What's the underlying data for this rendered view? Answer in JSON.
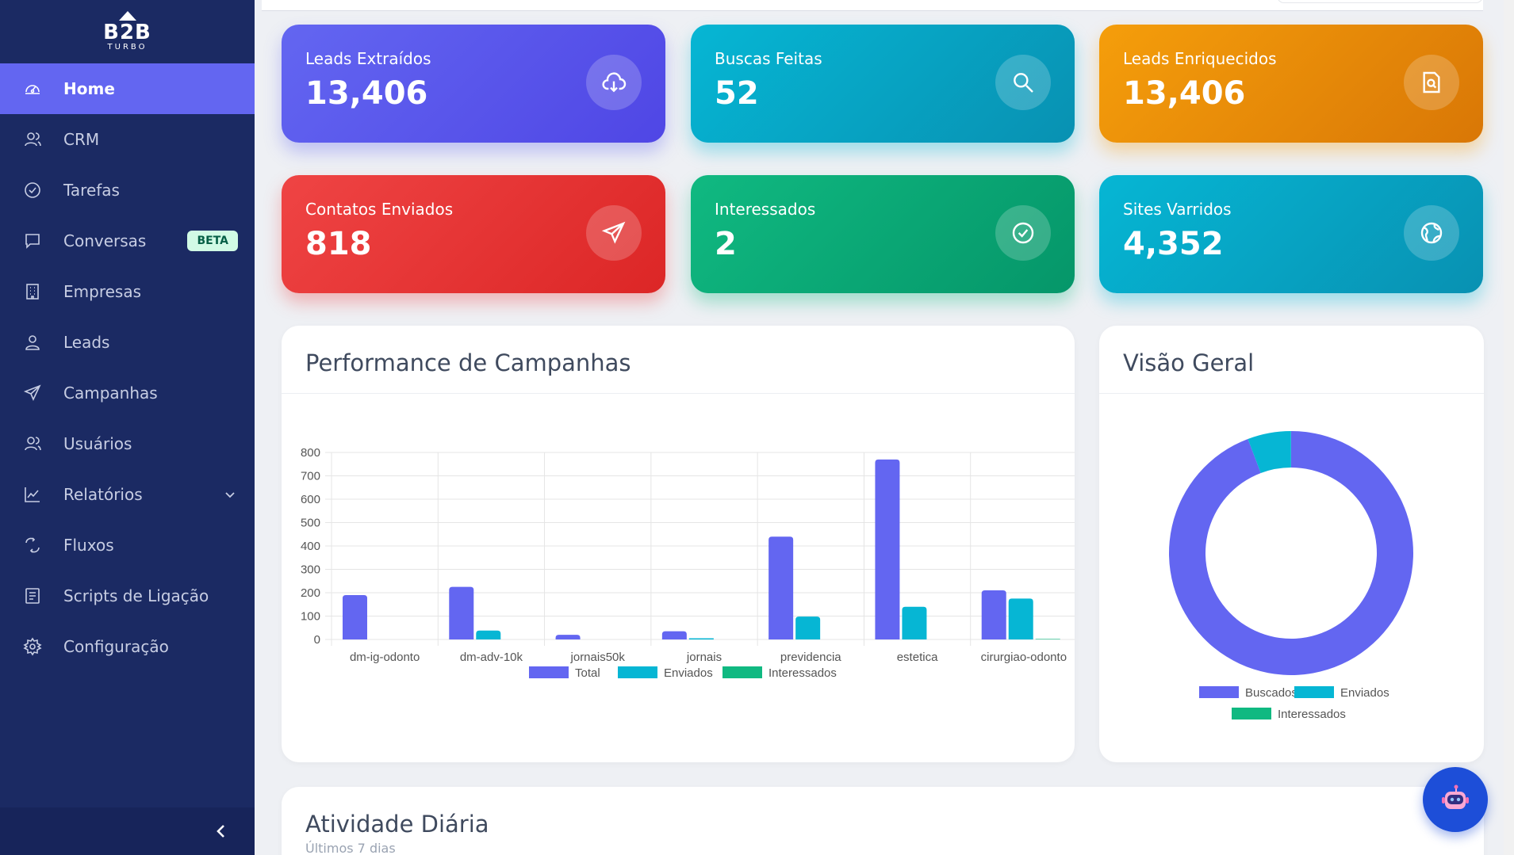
{
  "brand": {
    "name": "B2B",
    "tagline": "TURBO"
  },
  "sidebar": {
    "items": [
      {
        "label": "Home",
        "icon": "dashboard-icon",
        "active": true
      },
      {
        "label": "CRM",
        "icon": "users-icon"
      },
      {
        "label": "Tarefas",
        "icon": "check-circle-icon"
      },
      {
        "label": "Conversas",
        "icon": "chat-icon",
        "badge": "BETA"
      },
      {
        "label": "Empresas",
        "icon": "building-icon"
      },
      {
        "label": "Leads",
        "icon": "user-icon"
      },
      {
        "label": "Campanhas",
        "icon": "send-icon"
      },
      {
        "label": "Usuários",
        "icon": "users-icon"
      },
      {
        "label": "Relatórios",
        "icon": "chart-line-icon",
        "expandable": true
      },
      {
        "label": "Fluxos",
        "icon": "flow-icon"
      },
      {
        "label": "Scripts de Ligação",
        "icon": "document-icon"
      },
      {
        "label": "Configuração",
        "icon": "gear-icon"
      }
    ]
  },
  "stats": [
    {
      "label": "Leads Extraídos",
      "value": "13,406",
      "icon": "cloud-download-icon",
      "color": "#6366f1"
    },
    {
      "label": "Buscas Feitas",
      "value": "52",
      "icon": "search-icon",
      "color": "#06b6d4"
    },
    {
      "label": "Leads Enriquecidos",
      "value": "13,406",
      "icon": "file-search-icon",
      "color": "#f59e0b"
    },
    {
      "label": "Contatos Enviados",
      "value": "818",
      "icon": "send-icon",
      "color": "#ef4444"
    },
    {
      "label": "Interessados",
      "value": "2",
      "icon": "check-circle-icon",
      "color": "#10b981"
    },
    {
      "label": "Sites Varridos",
      "value": "4,352",
      "icon": "globe-icon",
      "color": "#06b6d4"
    }
  ],
  "panels": {
    "performance_title": "Performance de Campanhas",
    "overview_title": "Visão Geral",
    "daily_title": "Atividade Diária",
    "daily_subtitle": "Últimos 7 dias"
  },
  "chart_data": [
    {
      "type": "bar",
      "categories": [
        "dm-ig-odonto",
        "dm-adv-10k",
        "jornais50k",
        "jornais",
        "previdencia",
        "estetica",
        "cirurgiao-odonto"
      ],
      "series": [
        {
          "name": "Total",
          "color": "#6366f1",
          "values": [
            190,
            225,
            20,
            35,
            440,
            770,
            210
          ]
        },
        {
          "name": "Enviados",
          "color": "#06b6d4",
          "values": [
            0,
            38,
            0,
            5,
            98,
            140,
            175
          ]
        },
        {
          "name": "Interessados",
          "color": "#10b981",
          "values": [
            0,
            0,
            0,
            0,
            0,
            0,
            2
          ]
        }
      ],
      "yticks": [
        0,
        100,
        200,
        300,
        400,
        500,
        600,
        700,
        800
      ],
      "ylim": [
        0,
        800
      ],
      "grid": true,
      "legend": "bottom"
    },
    {
      "type": "pie",
      "variant": "doughnut",
      "labels": [
        "Buscados",
        "Enviados",
        "Interessados"
      ],
      "colors": [
        "#6366f1",
        "#06b6d4",
        "#10b981"
      ],
      "values": [
        13406,
        818,
        2
      ],
      "legend": "bottom"
    }
  ]
}
